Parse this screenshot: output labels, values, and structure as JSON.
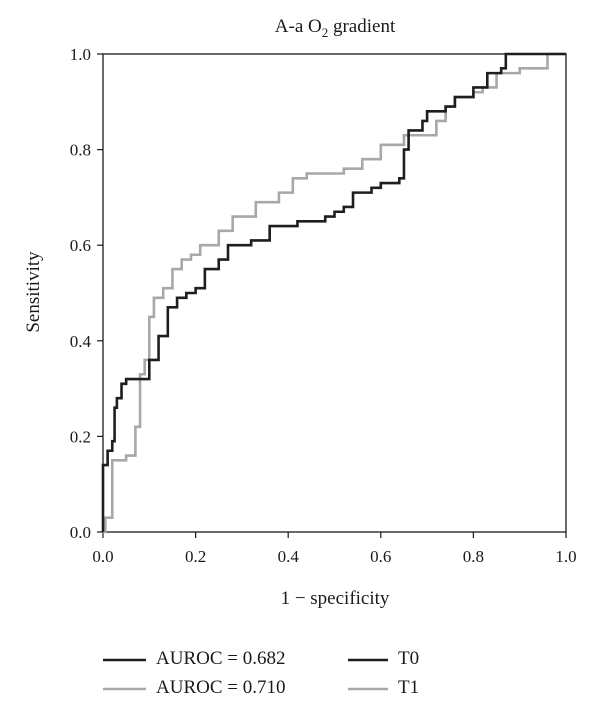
{
  "chart_data": {
    "type": "line",
    "title_main": "A-a O",
    "title_sub": "2",
    "title_rest": " gradient",
    "xlabel": "1 − specificity",
    "ylabel": "Sensitivity",
    "xlim": [
      0,
      1
    ],
    "ylim": [
      0,
      1
    ],
    "xticks": [
      "0.0",
      "0.2",
      "0.4",
      "0.6",
      "0.8",
      "1.0"
    ],
    "yticks": [
      "0.0",
      "0.2",
      "0.4",
      "0.6",
      "0.8",
      "1.0"
    ],
    "grid": false,
    "series": [
      {
        "name": "T0",
        "color": "#1e1e1e",
        "points": [
          [
            0,
            0
          ],
          [
            0,
            0.09
          ],
          [
            0,
            0.14
          ],
          [
            0.01,
            0.17
          ],
          [
            0.02,
            0.19
          ],
          [
            0.025,
            0.26
          ],
          [
            0.03,
            0.28
          ],
          [
            0.04,
            0.31
          ],
          [
            0.05,
            0.32
          ],
          [
            0.09,
            0.32
          ],
          [
            0.1,
            0.36
          ],
          [
            0.12,
            0.41
          ],
          [
            0.14,
            0.47
          ],
          [
            0.16,
            0.49
          ],
          [
            0.18,
            0.5
          ],
          [
            0.2,
            0.51
          ],
          [
            0.22,
            0.55
          ],
          [
            0.25,
            0.57
          ],
          [
            0.27,
            0.6
          ],
          [
            0.32,
            0.61
          ],
          [
            0.36,
            0.64
          ],
          [
            0.4,
            0.64
          ],
          [
            0.42,
            0.65
          ],
          [
            0.48,
            0.66
          ],
          [
            0.5,
            0.67
          ],
          [
            0.52,
            0.68
          ],
          [
            0.54,
            0.71
          ],
          [
            0.58,
            0.72
          ],
          [
            0.6,
            0.73
          ],
          [
            0.64,
            0.74
          ],
          [
            0.65,
            0.8
          ],
          [
            0.66,
            0.84
          ],
          [
            0.69,
            0.86
          ],
          [
            0.7,
            0.88
          ],
          [
            0.74,
            0.89
          ],
          [
            0.76,
            0.91
          ],
          [
            0.8,
            0.93
          ],
          [
            0.83,
            0.96
          ],
          [
            0.86,
            0.97
          ],
          [
            0.87,
            1.0
          ],
          [
            1.0,
            1.0
          ]
        ]
      },
      {
        "name": "T1",
        "color": "#a8a8a8",
        "points": [
          [
            0,
            0
          ],
          [
            0.005,
            0.03
          ],
          [
            0.02,
            0.04
          ],
          [
            0.02,
            0.15
          ],
          [
            0.05,
            0.16
          ],
          [
            0.07,
            0.22
          ],
          [
            0.08,
            0.33
          ],
          [
            0.09,
            0.36
          ],
          [
            0.1,
            0.45
          ],
          [
            0.11,
            0.49
          ],
          [
            0.13,
            0.51
          ],
          [
            0.15,
            0.55
          ],
          [
            0.17,
            0.57
          ],
          [
            0.19,
            0.58
          ],
          [
            0.21,
            0.6
          ],
          [
            0.25,
            0.63
          ],
          [
            0.28,
            0.66
          ],
          [
            0.33,
            0.69
          ],
          [
            0.38,
            0.71
          ],
          [
            0.41,
            0.74
          ],
          [
            0.44,
            0.75
          ],
          [
            0.52,
            0.76
          ],
          [
            0.56,
            0.78
          ],
          [
            0.6,
            0.81
          ],
          [
            0.65,
            0.83
          ],
          [
            0.7,
            0.83
          ],
          [
            0.72,
            0.86
          ],
          [
            0.74,
            0.89
          ],
          [
            0.76,
            0.91
          ],
          [
            0.8,
            0.92
          ],
          [
            0.82,
            0.93
          ],
          [
            0.85,
            0.96
          ],
          [
            0.9,
            0.97
          ],
          [
            0.96,
            0.97
          ],
          [
            0.96,
            1.0
          ],
          [
            1.0,
            1.0
          ]
        ]
      }
    ],
    "legend": [
      {
        "line_color": "#1e1e1e",
        "text": "AUROC = 0.682"
      },
      {
        "line_color": "#1e1e1e",
        "text": "T0"
      },
      {
        "line_color": "#a8a8a8",
        "text": "AUROC = 0.710"
      },
      {
        "line_color": "#a8a8a8",
        "text": "T1"
      }
    ]
  }
}
